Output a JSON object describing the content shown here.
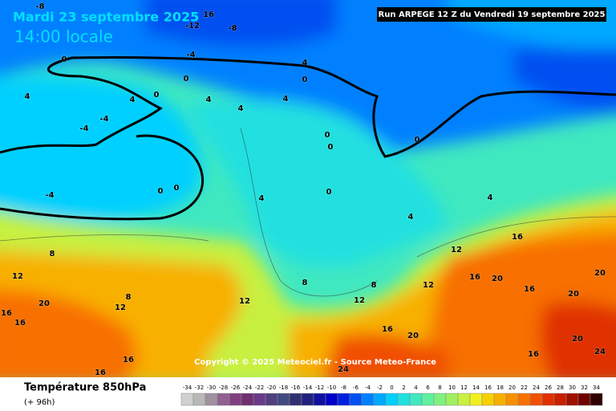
{
  "header": {
    "date": "Mardi 23 septembre 2025",
    "time": "14:00 locale",
    "run": "Run ARPEGE 12 Z du Vendredi 19 septembre 2025"
  },
  "footer": {
    "title": "Température 850hPa",
    "lead": "(+ 96h)",
    "copyright": "Copyright © 2025 Meteociel.fr - Source Meteo-France"
  },
  "legend": {
    "ticks": [
      -34,
      -32,
      -30,
      -28,
      -26,
      -24,
      -22,
      -20,
      -18,
      -16,
      -14,
      -12,
      -10,
      -8,
      -6,
      -4,
      -2,
      0,
      2,
      4,
      6,
      8,
      10,
      12,
      14,
      16,
      18,
      20,
      22,
      24,
      26,
      28,
      30,
      32,
      34
    ],
    "colors": [
      "#d0d0d0",
      "#b8b8b8",
      "#a090a0",
      "#906090",
      "#804080",
      "#703070",
      "#6a3a8a",
      "#504080",
      "#404a80",
      "#303070",
      "#202080",
      "#1010a0",
      "#0000c8",
      "#0020e0",
      "#0050f0",
      "#0080ff",
      "#00a8ff",
      "#00d0ff",
      "#20e0e0",
      "#40e8c0",
      "#60f0a0",
      "#80f080",
      "#a0f060",
      "#c8f040",
      "#f0f020",
      "#f8d000",
      "#f8b000",
      "#f89000",
      "#f87000",
      "#f05000",
      "#e03000",
      "#c82000",
      "#a01000",
      "#700000",
      "#300000"
    ]
  },
  "map": {
    "labels": [
      -8,
      -12,
      -8,
      16,
      -4,
      0,
      0,
      4,
      0,
      4,
      0,
      4,
      4,
      4,
      4,
      -4,
      -4,
      0,
      0,
      0,
      0,
      0,
      -4,
      4,
      0,
      4,
      4,
      12,
      16,
      16,
      20,
      16,
      8,
      8,
      12,
      12,
      12,
      8,
      12,
      20,
      16,
      16,
      16,
      20,
      20,
      24,
      16,
      16,
      16,
      24,
      12,
      8,
      20,
      20
    ]
  }
}
